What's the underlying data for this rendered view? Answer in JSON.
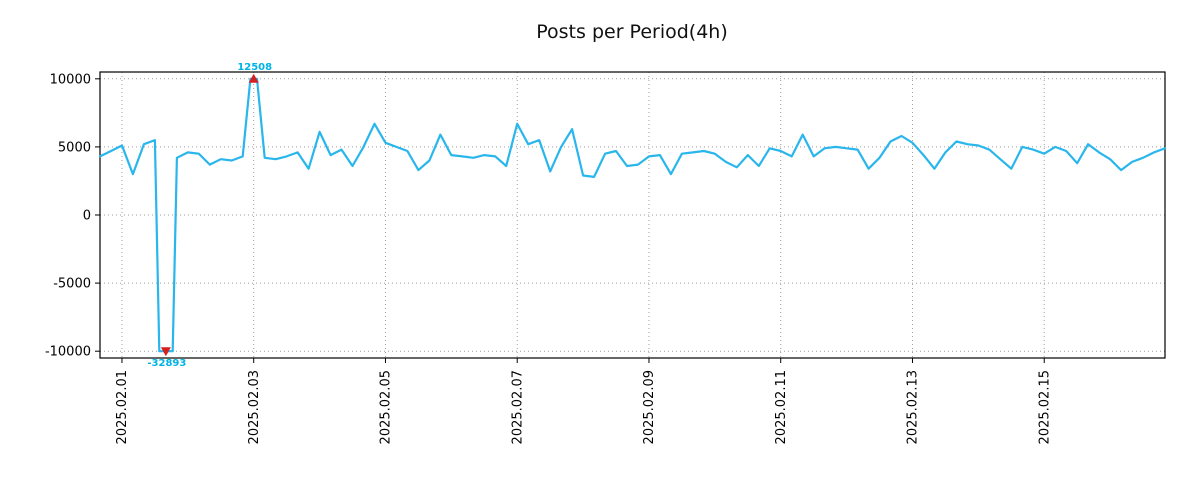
{
  "chart_data": {
    "type": "line",
    "title": "Posts per Period(4h)",
    "xlabel": "",
    "ylabel": "",
    "legend": "none",
    "grid": "dotted",
    "line_color": "#29b6ec",
    "marker_color": "#d62020",
    "annotation_color": "#00b3e6",
    "axis_color": "#000000",
    "grid_color": "#9e9e9e",
    "ylim": [
      -10500,
      10500
    ],
    "clip": [
      -10000,
      10000
    ],
    "yticks": [
      10000,
      5000,
      0,
      -5000,
      -10000
    ],
    "xticks": [
      {
        "index": 2,
        "label": "2025.02.01"
      },
      {
        "index": 14,
        "label": "2025.02.03"
      },
      {
        "index": 26,
        "label": "2025.02.05"
      },
      {
        "index": 38,
        "label": "2025.02.07"
      },
      {
        "index": 50,
        "label": "2025.02.09"
      },
      {
        "index": 62,
        "label": "2025.02.11"
      },
      {
        "index": 74,
        "label": "2025.02.13"
      },
      {
        "index": 86,
        "label": "2025.02.15"
      }
    ],
    "values": [
      4300,
      4700,
      5100,
      3000,
      5200,
      5500,
      -32893,
      4200,
      4600,
      4500,
      3700,
      4100,
      4000,
      4300,
      12508,
      4200,
      4100,
      4300,
      4600,
      3400,
      6100,
      4400,
      4800,
      3600,
      5000,
      6700,
      5300,
      5000,
      4700,
      3300,
      4000,
      5900,
      4400,
      4300,
      4200,
      4400,
      4300,
      3600,
      6700,
      5200,
      5500,
      3200,
      5000,
      6300,
      2900,
      2800,
      4500,
      4700,
      3600,
      3700,
      4300,
      4400,
      3000,
      4500,
      4600,
      4700,
      4500,
      3900,
      3500,
      4400,
      3600,
      4900,
      4700,
      4300,
      5900,
      4300,
      4900,
      5000,
      4900,
      4800,
      3400,
      4200,
      5400,
      5800,
      5300,
      4400,
      3400,
      4600,
      5400,
      5200,
      5100,
      4800,
      4100,
      3400,
      5000,
      4800,
      4500,
      5000,
      4700,
      3800,
      5200,
      4600,
      4100,
      3300,
      3900,
      4200,
      4600,
      4900
    ],
    "max": {
      "index": 14,
      "value": 12508,
      "label": "12508"
    },
    "min": {
      "index": 6,
      "value": -32893,
      "label": "-32893"
    }
  }
}
